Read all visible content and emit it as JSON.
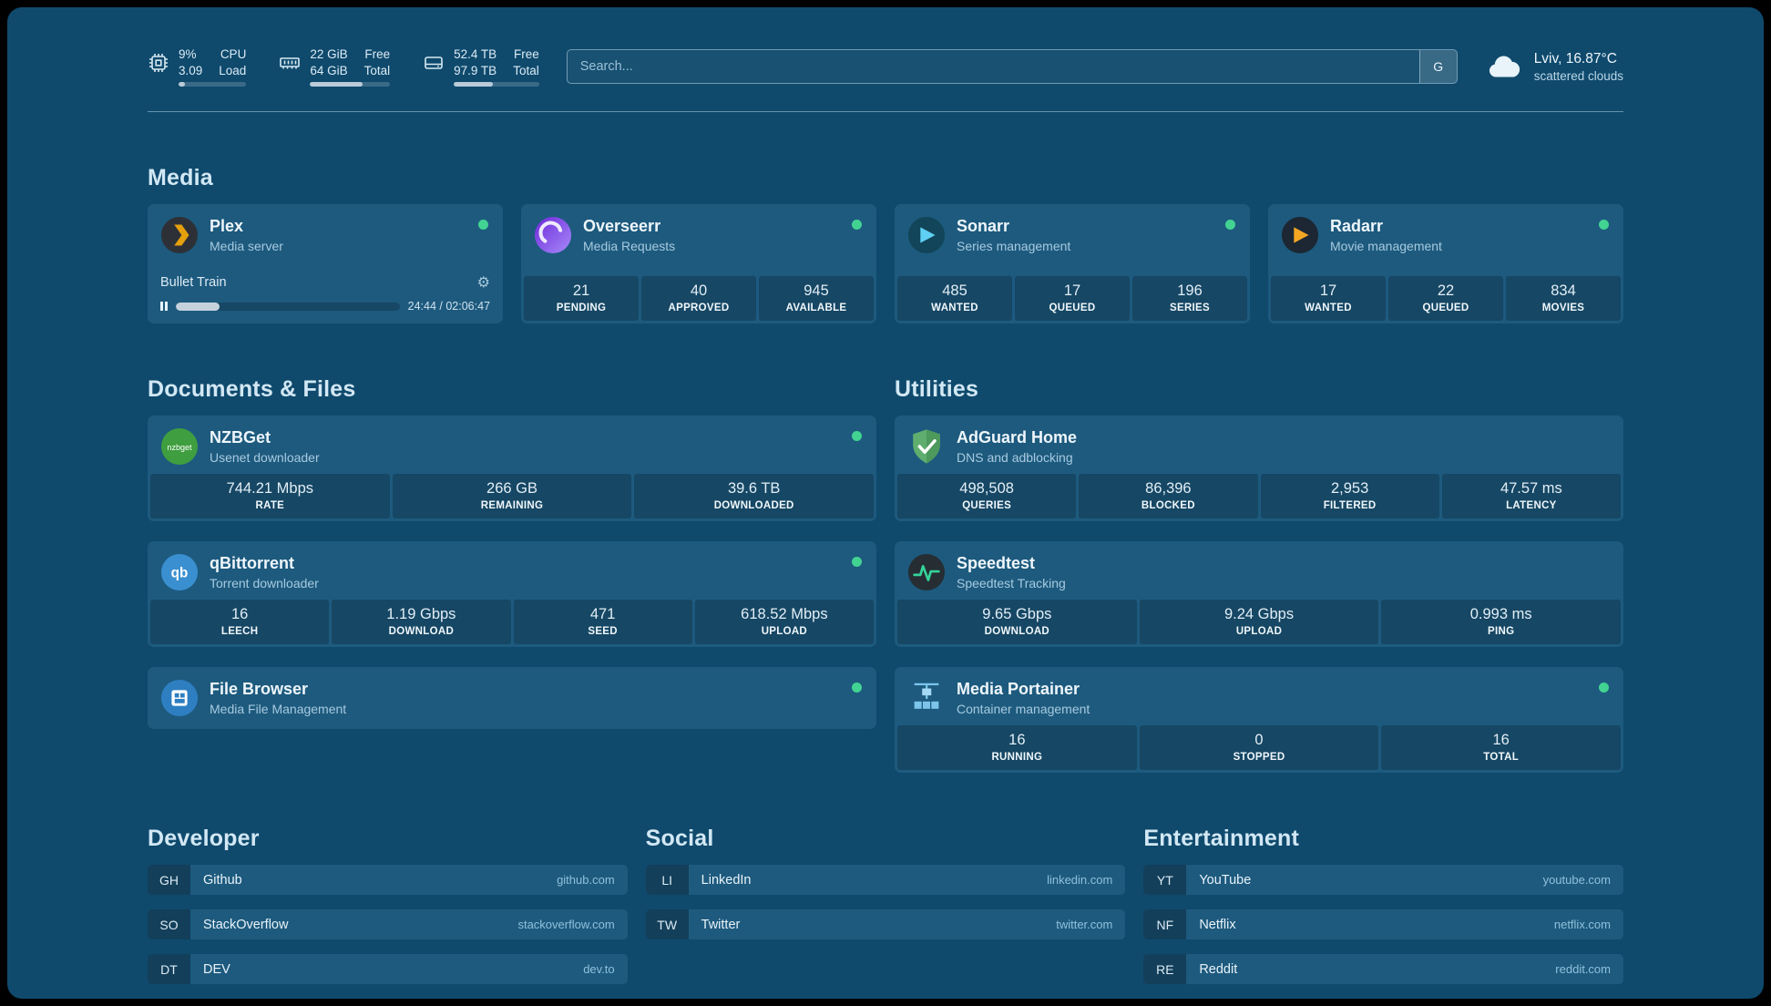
{
  "topbar": {
    "resources": [
      {
        "values": [
          "9%",
          "3.09"
        ],
        "labels": [
          "CPU",
          "Load"
        ],
        "percent": 9
      },
      {
        "values": [
          "22 GiB",
          "64 GiB"
        ],
        "labels": [
          "Free",
          "Total"
        ],
        "percent": 66
      },
      {
        "values": [
          "52.4 TB",
          "97.9 TB"
        ],
        "labels": [
          "Free",
          "Total"
        ],
        "percent": 46
      }
    ],
    "search": {
      "placeholder": "Search...",
      "button": "G"
    },
    "weather": {
      "location": "Lviv, 16.87°C",
      "condition": "scattered clouds"
    }
  },
  "sections": {
    "media": {
      "title": "Media"
    },
    "documents": {
      "title": "Documents & Files"
    },
    "utilities": {
      "title": "Utilities"
    }
  },
  "apps": {
    "plex": {
      "name": "Plex",
      "subtitle": "Media server",
      "now_playing": {
        "title": "Bullet Train",
        "time": "24:44 / 02:06:47",
        "percent": 19.6
      }
    },
    "overseerr": {
      "name": "Overseerr",
      "subtitle": "Media Requests",
      "stats": [
        {
          "value": "21",
          "label": "PENDING"
        },
        {
          "value": "40",
          "label": "APPROVED"
        },
        {
          "value": "945",
          "label": "AVAILABLE"
        }
      ]
    },
    "sonarr": {
      "name": "Sonarr",
      "subtitle": "Series management",
      "stats": [
        {
          "value": "485",
          "label": "WANTED"
        },
        {
          "value": "17",
          "label": "QUEUED"
        },
        {
          "value": "196",
          "label": "SERIES"
        }
      ]
    },
    "radarr": {
      "name": "Radarr",
      "subtitle": "Movie management",
      "stats": [
        {
          "value": "17",
          "label": "WANTED"
        },
        {
          "value": "22",
          "label": "QUEUED"
        },
        {
          "value": "834",
          "label": "MOVIES"
        }
      ]
    },
    "nzbget": {
      "name": "NZBGet",
      "subtitle": "Usenet downloader",
      "icon_text": "nzbget",
      "stats": [
        {
          "value": "744.21 Mbps",
          "label": "RATE"
        },
        {
          "value": "266 GB",
          "label": "REMAINING"
        },
        {
          "value": "39.6 TB",
          "label": "DOWNLOADED"
        }
      ]
    },
    "qbittorrent": {
      "name": "qBittorrent",
      "subtitle": "Torrent downloader",
      "icon_text": "qb",
      "stats": [
        {
          "value": "16",
          "label": "LEECH"
        },
        {
          "value": "1.19 Gbps",
          "label": "DOWNLOAD"
        },
        {
          "value": "471",
          "label": "SEED"
        },
        {
          "value": "618.52 Mbps",
          "label": "UPLOAD"
        }
      ]
    },
    "filebrowser": {
      "name": "File Browser",
      "subtitle": "Media File Management"
    },
    "adguard": {
      "name": "AdGuard Home",
      "subtitle": "DNS and adblocking",
      "stats": [
        {
          "value": "498,508",
          "label": "QUERIES"
        },
        {
          "value": "86,396",
          "label": "BLOCKED"
        },
        {
          "value": "2,953",
          "label": "FILTERED"
        },
        {
          "value": "47.57 ms",
          "label": "LATENCY"
        }
      ]
    },
    "speedtest": {
      "name": "Speedtest",
      "subtitle": "Speedtest Tracking",
      "stats": [
        {
          "value": "9.65 Gbps",
          "label": "DOWNLOAD"
        },
        {
          "value": "9.24 Gbps",
          "label": "UPLOAD"
        },
        {
          "value": "0.993 ms",
          "label": "PING"
        }
      ]
    },
    "portainer": {
      "name": "Media Portainer",
      "subtitle": "Container management",
      "stats": [
        {
          "value": "16",
          "label": "RUNNING"
        },
        {
          "value": "0",
          "label": "STOPPED"
        },
        {
          "value": "16",
          "label": "TOTAL"
        }
      ]
    }
  },
  "bookmarks": [
    {
      "title": "Developer",
      "items": [
        {
          "abbr": "GH",
          "name": "Github",
          "domain": "github.com"
        },
        {
          "abbr": "SO",
          "name": "StackOverflow",
          "domain": "stackoverflow.com"
        },
        {
          "abbr": "DT",
          "name": "DEV",
          "domain": "dev.to"
        }
      ]
    },
    {
      "title": "Social",
      "items": [
        {
          "abbr": "LI",
          "name": "LinkedIn",
          "domain": "linkedin.com"
        },
        {
          "abbr": "TW",
          "name": "Twitter",
          "domain": "twitter.com"
        }
      ]
    },
    {
      "title": "Entertainment",
      "items": [
        {
          "abbr": "YT",
          "name": "YouTube",
          "domain": "youtube.com"
        },
        {
          "abbr": "NF",
          "name": "Netflix",
          "domain": "netflix.com"
        },
        {
          "abbr": "RE",
          "name": "Reddit",
          "domain": "reddit.com"
        }
      ]
    }
  ],
  "colors": {
    "background": "#0f4a6d",
    "card": "#1d5a7e",
    "status_ok": "#42d392",
    "plex_accent": "#e5a00d",
    "adguard_green": "#5fae6e",
    "speedtest_line": "#34d399"
  }
}
